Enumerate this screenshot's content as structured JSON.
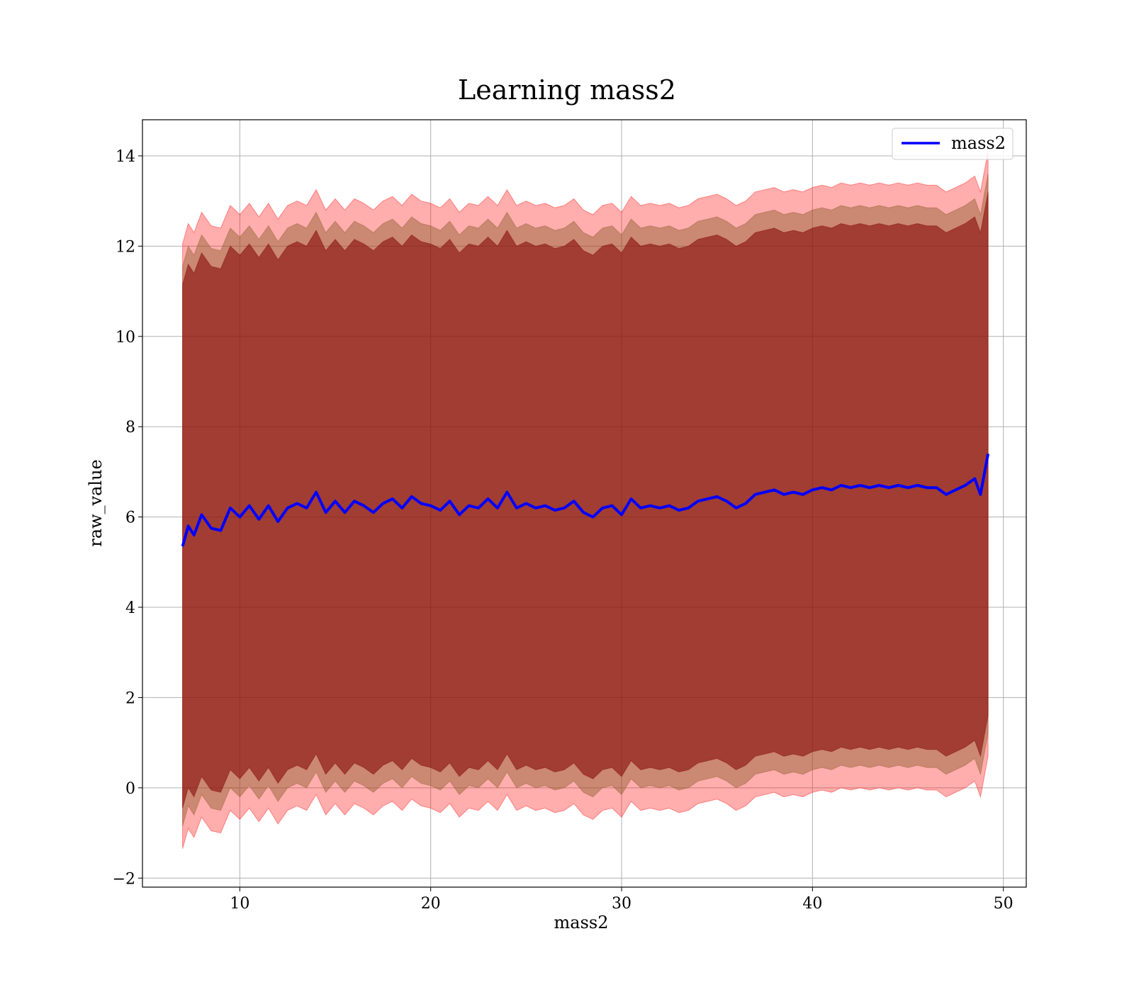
{
  "chart_data": {
    "type": "line",
    "title": "Learning mass2",
    "xlabel": "mass2",
    "ylabel": "raw_value",
    "xlim": [
      4.9,
      51.2
    ],
    "ylim": [
      -2.2,
      14.8
    ],
    "xticks": [
      10,
      20,
      30,
      40,
      50
    ],
    "xtick_labels": [
      "10",
      "20",
      "30",
      "40",
      "50"
    ],
    "yticks": [
      -2,
      0,
      2,
      4,
      6,
      8,
      10,
      12,
      14
    ],
    "ytick_labels": [
      "−2",
      "0",
      "2",
      "4",
      "6",
      "8",
      "10",
      "12",
      "14"
    ],
    "grid": true,
    "legend": {
      "position": "top-right",
      "entries": [
        "mass2"
      ]
    },
    "colors": {
      "line": "#0000ff",
      "outer_band": "#ff0000",
      "middle_band": "#8b5a2b",
      "inner_band": "#800000"
    },
    "series": [
      {
        "name": "mass2",
        "x": [
          7.0,
          7.3,
          7.6,
          8.0,
          8.5,
          9.0,
          9.5,
          10.0,
          10.5,
          11.0,
          11.5,
          12.0,
          12.5,
          13.0,
          13.5,
          14.0,
          14.5,
          15.0,
          15.5,
          16.0,
          16.5,
          17.0,
          17.5,
          18.0,
          18.5,
          19.0,
          19.5,
          20.0,
          20.5,
          21.0,
          21.5,
          22.0,
          22.5,
          23.0,
          23.5,
          24.0,
          24.5,
          25.0,
          25.5,
          26.0,
          26.5,
          27.0,
          27.5,
          28.0,
          28.5,
          29.0,
          29.5,
          30.0,
          30.5,
          31.0,
          31.5,
          32.0,
          32.5,
          33.0,
          33.5,
          34.0,
          34.5,
          35.0,
          35.5,
          36.0,
          36.5,
          37.0,
          37.5,
          38.0,
          38.5,
          39.0,
          39.5,
          40.0,
          40.5,
          41.0,
          41.5,
          42.0,
          42.5,
          43.0,
          43.5,
          44.0,
          44.5,
          45.0,
          45.5,
          46.0,
          46.5,
          47.0,
          47.5,
          48.0,
          48.5,
          48.8,
          49.2
        ],
        "y": [
          5.35,
          5.8,
          5.6,
          6.05,
          5.75,
          5.7,
          6.2,
          6.0,
          6.25,
          5.95,
          6.25,
          5.9,
          6.2,
          6.3,
          6.2,
          6.55,
          6.1,
          6.35,
          6.1,
          6.35,
          6.25,
          6.1,
          6.3,
          6.4,
          6.2,
          6.45,
          6.3,
          6.25,
          6.15,
          6.35,
          6.05,
          6.25,
          6.2,
          6.4,
          6.2,
          6.55,
          6.2,
          6.3,
          6.2,
          6.25,
          6.15,
          6.2,
          6.35,
          6.1,
          6.0,
          6.2,
          6.25,
          6.05,
          6.4,
          6.2,
          6.25,
          6.2,
          6.25,
          6.15,
          6.2,
          6.35,
          6.4,
          6.45,
          6.35,
          6.2,
          6.3,
          6.5,
          6.55,
          6.6,
          6.5,
          6.55,
          6.5,
          6.6,
          6.65,
          6.6,
          6.7,
          6.65,
          6.7,
          6.65,
          6.7,
          6.65,
          6.7,
          6.65,
          6.7,
          6.65,
          6.65,
          6.5,
          6.6,
          6.7,
          6.85,
          6.5,
          7.4
        ]
      }
    ],
    "bands": [
      {
        "level": "outer",
        "half_width": 6.7
      },
      {
        "level": "middle",
        "half_width": 6.2
      },
      {
        "level": "inner",
        "half_width": 5.8
      }
    ]
  }
}
